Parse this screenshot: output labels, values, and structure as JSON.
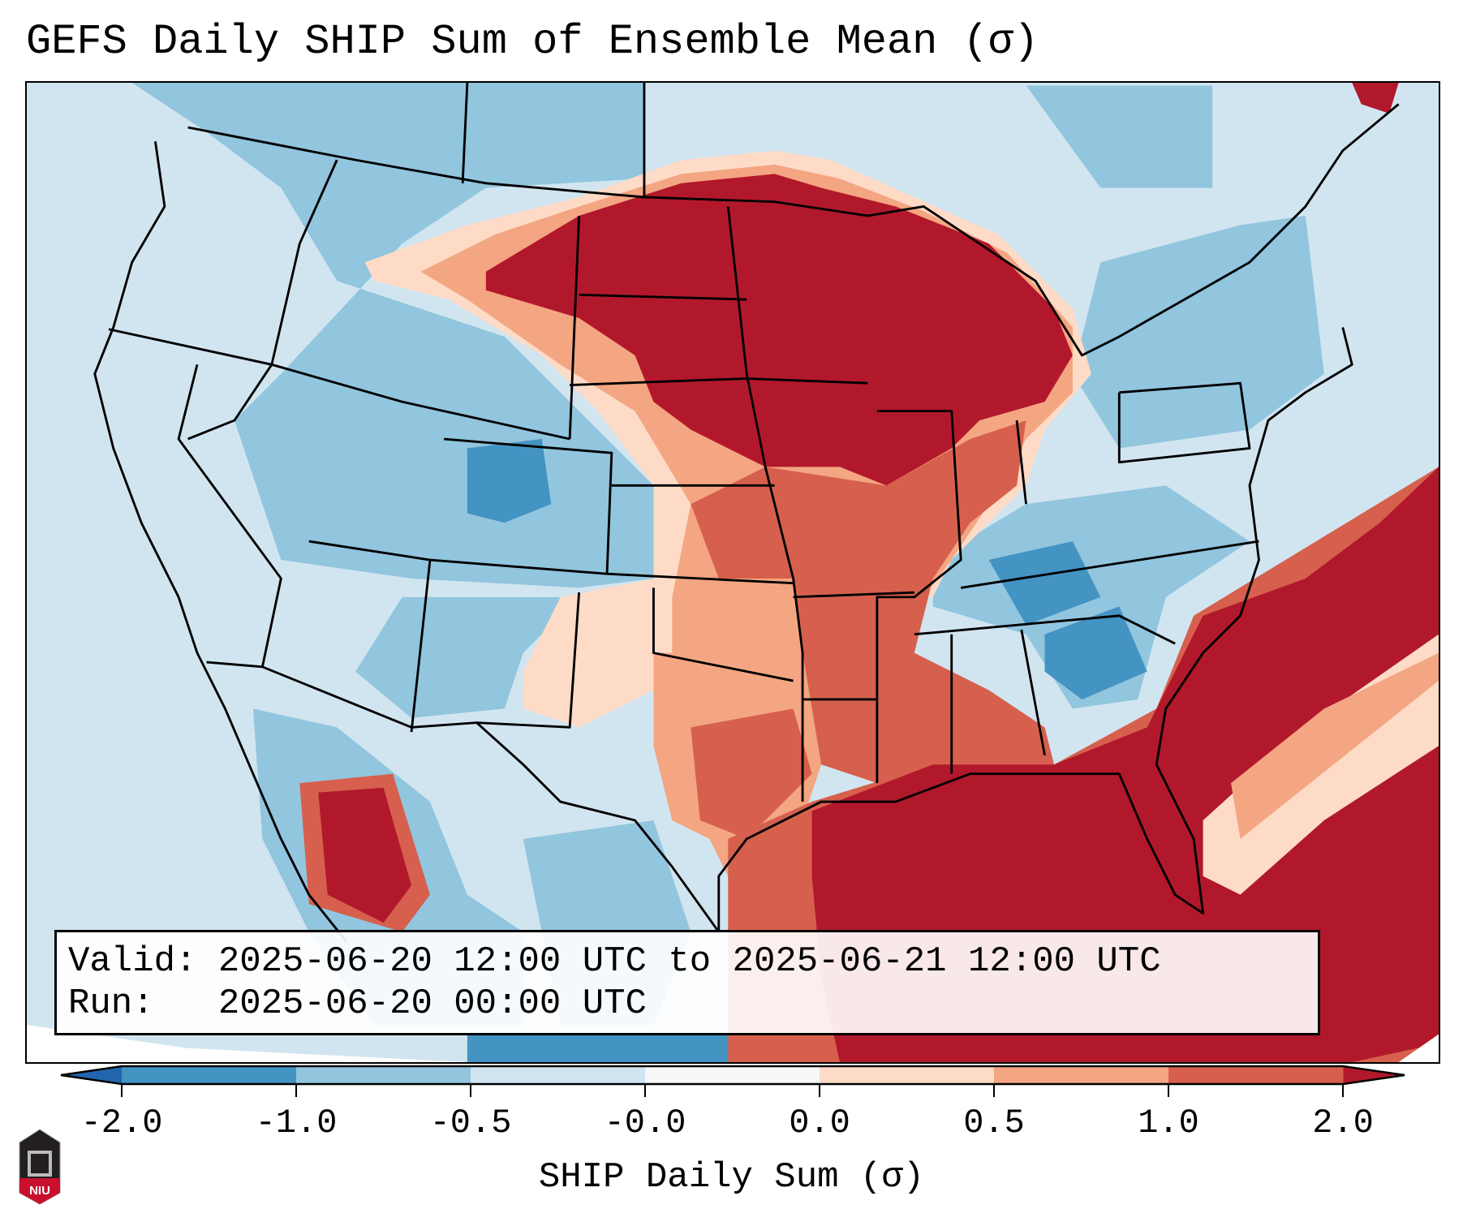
{
  "title": "GEFS Daily SHIP Sum of Ensemble Mean (σ)",
  "info": {
    "valid": "Valid: 2025-06-20 12:00 UTC to 2025-06-21 12:00 UTC",
    "run": "Run:   2025-06-20 00:00 UTC"
  },
  "colorbar": {
    "label": "SHIP Daily Sum (σ)",
    "ticks": [
      "-2.0",
      "-1.0",
      "-0.5",
      "-0.0",
      "0.0",
      "0.5",
      "1.0",
      "2.0"
    ],
    "under_color": "#2166ac",
    "over_color": "#b2182b",
    "bins": [
      {
        "range": "-2.0 to -1.0",
        "color": "#4393c3"
      },
      {
        "range": "-1.0 to -0.5",
        "color": "#92c5de"
      },
      {
        "range": "-0.5 to -0.0",
        "color": "#d1e5f0"
      },
      {
        "range": "-0.0 to 0.0",
        "color": "#f7f7f7"
      },
      {
        "range": "0.0 to 0.5",
        "color": "#fddbc7"
      },
      {
        "range": "0.5 to 1.0",
        "color": "#f4a582"
      },
      {
        "range": "1.0 to 2.0",
        "color": "#d6604d"
      }
    ]
  },
  "logo": {
    "text": "NIU"
  }
}
